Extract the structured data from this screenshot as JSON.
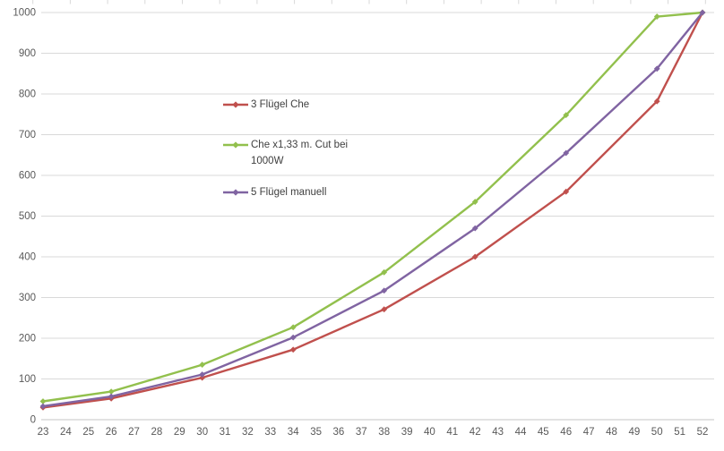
{
  "chart_data": {
    "type": "line",
    "title": "",
    "xlabel": "",
    "ylabel": "",
    "grid": true,
    "x": [
      23,
      26,
      30,
      34,
      38,
      42,
      46,
      50,
      52
    ],
    "series": [
      {
        "name": "3 Flügel Che",
        "color": "#C0504D",
        "values": [
          30,
          52,
          103,
          172,
          271,
          400,
          560,
          782,
          1000
        ]
      },
      {
        "name": "Che x1,33 m. Cut bei 1000W",
        "color": "#92C04D",
        "values": [
          45,
          69,
          135,
          227,
          362,
          535,
          748,
          990,
          1000
        ]
      },
      {
        "name": "5 Flügel manuell",
        "color": "#8064A2",
        "values": [
          33,
          57,
          111,
          202,
          317,
          470,
          655,
          862,
          1000
        ]
      }
    ],
    "x_axis": {
      "min": 23,
      "max": 52,
      "step": 1,
      "tick_labels": [
        "23",
        "24",
        "25",
        "26",
        "27",
        "28",
        "29",
        "30",
        "31",
        "32",
        "33",
        "34",
        "35",
        "36",
        "37",
        "38",
        "39",
        "40",
        "41",
        "42",
        "43",
        "44",
        "45",
        "46",
        "47",
        "48",
        "49",
        "50",
        "51",
        "52"
      ]
    },
    "y_axis": {
      "min": 0,
      "max": 1000,
      "step": 100,
      "tick_labels": [
        "0",
        "100",
        "200",
        "300",
        "400",
        "500",
        "600",
        "700",
        "800",
        "900",
        "1000"
      ]
    },
    "legend": {
      "position": "inside-center-left",
      "entries": [
        "3 Flügel Che",
        "Che x1,33 m. Cut bei 1000W",
        "5 Flügel manuell"
      ]
    }
  },
  "colors": {
    "background": "#FFFFFF",
    "gridline": "#D9D9D9",
    "axis_line": "#C6C6C6",
    "tick_text": "#595959",
    "legend_text": "#3F3F3F",
    "series_red": "#C0504D",
    "series_green": "#92C04D",
    "series_purple": "#8064A2"
  }
}
